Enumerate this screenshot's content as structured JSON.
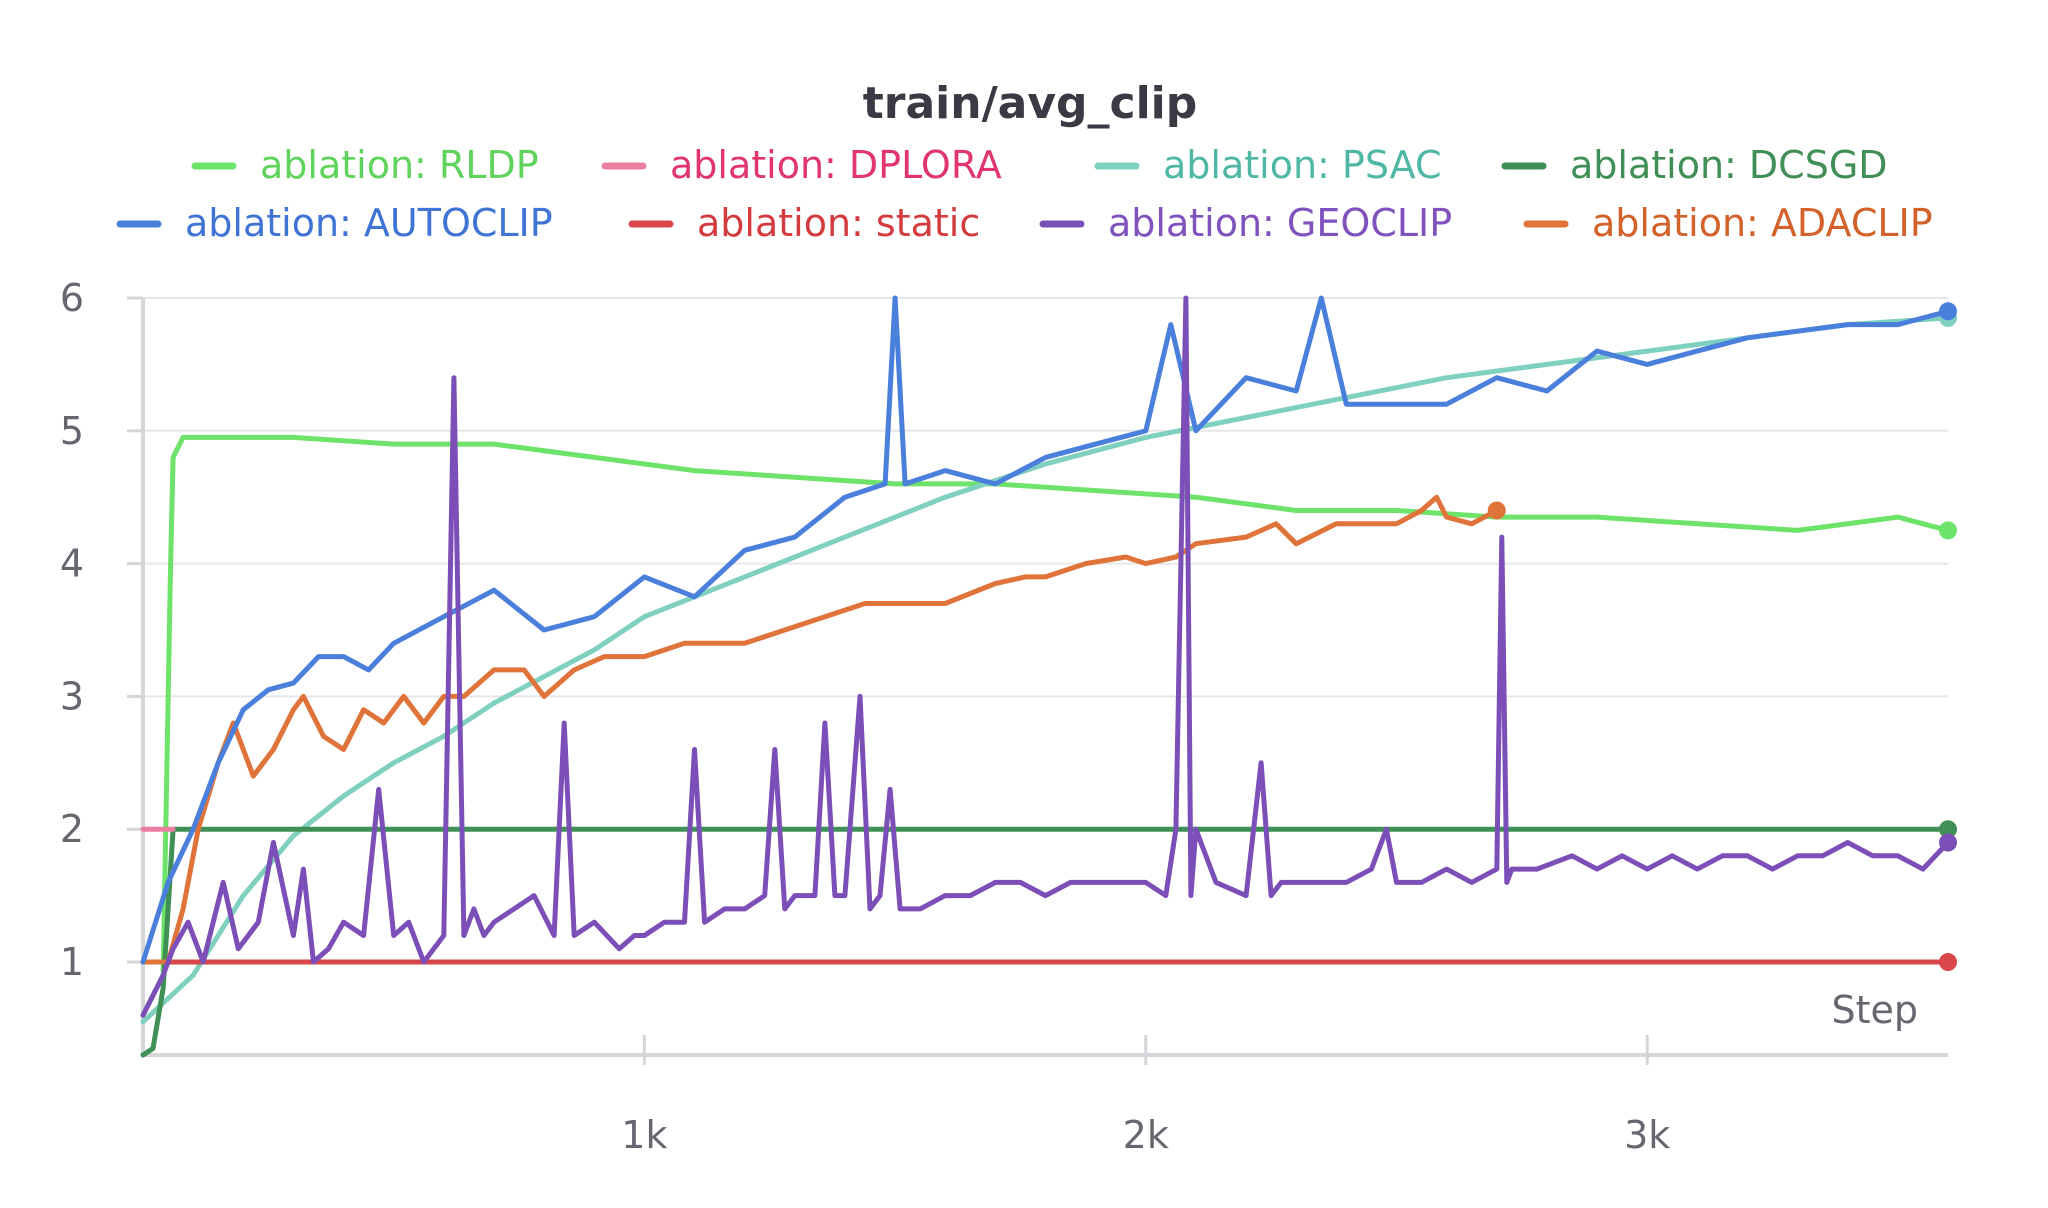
{
  "chart_data": {
    "type": "line",
    "title": "train/avg_clip",
    "xlabel": "Step",
    "ylabel": "",
    "xlim": [
      0,
      3600
    ],
    "ylim": [
      0.3,
      6
    ],
    "x_ticks": [
      {
        "value": 1000,
        "label": "1k"
      },
      {
        "value": 2000,
        "label": "2k"
      },
      {
        "value": 3000,
        "label": "3k"
      }
    ],
    "y_ticks": [
      {
        "value": 1,
        "label": "1"
      },
      {
        "value": 2,
        "label": "2"
      },
      {
        "value": 3,
        "label": "3"
      },
      {
        "value": 4,
        "label": "4"
      },
      {
        "value": 5,
        "label": "5"
      },
      {
        "value": 6,
        "label": "6"
      }
    ],
    "grid": true,
    "legend_position": "top",
    "series": [
      {
        "name": "ablation: RLDP",
        "color": "#6ee36a",
        "text_color": "#5fd35c",
        "x": [
          0,
          40,
          55,
          60,
          80,
          150,
          300,
          500,
          700,
          900,
          1100,
          1300,
          1500,
          1700,
          1900,
          2100,
          2300,
          2500,
          2700,
          2900,
          3100,
          3300,
          3500,
          3600
        ],
        "y": [
          0.6,
          0.9,
          4.0,
          4.8,
          4.95,
          4.95,
          4.95,
          4.9,
          4.9,
          4.8,
          4.7,
          4.65,
          4.6,
          4.6,
          4.55,
          4.5,
          4.4,
          4.4,
          4.35,
          4.35,
          4.3,
          4.25,
          4.35,
          4.25
        ]
      },
      {
        "name": "ablation: DPLORA",
        "color": "#ea7fa0",
        "text_color": "#e0366b",
        "x": [
          0,
          60
        ],
        "y": [
          2.0,
          2.0
        ]
      },
      {
        "name": "ablation: PSAC",
        "color": "#80d0c0",
        "text_color": "#4fb8a4",
        "x": [
          0,
          100,
          200,
          300,
          400,
          500,
          600,
          700,
          800,
          900,
          1000,
          1200,
          1400,
          1600,
          1800,
          2000,
          2200,
          2400,
          2600,
          2800,
          3000,
          3200,
          3400,
          3600
        ],
        "y": [
          0.55,
          0.9,
          1.5,
          1.95,
          2.25,
          2.5,
          2.7,
          2.95,
          3.15,
          3.35,
          3.6,
          3.9,
          4.2,
          4.5,
          4.75,
          4.95,
          5.1,
          5.25,
          5.4,
          5.5,
          5.6,
          5.7,
          5.8,
          5.85
        ]
      },
      {
        "name": "ablation: DCSGD",
        "color": "#3f8f56",
        "text_color": "#3f8f56",
        "x": [
          0,
          20,
          40,
          60,
          3600
        ],
        "y": [
          0.3,
          0.35,
          0.8,
          2.0,
          2.0
        ]
      },
      {
        "name": "ablation: AUTOCLIP",
        "color": "#4a7fdc",
        "text_color": "#3f74d4",
        "x": [
          0,
          50,
          100,
          150,
          200,
          250,
          300,
          350,
          400,
          450,
          500,
          600,
          700,
          800,
          900,
          1000,
          1100,
          1200,
          1300,
          1400,
          1480,
          1500,
          1520,
          1600,
          1700,
          1800,
          1900,
          2000,
          2050,
          2100,
          2200,
          2300,
          2350,
          2400,
          2500,
          2600,
          2700,
          2800,
          2900,
          3000,
          3100,
          3200,
          3300,
          3400,
          3500,
          3600
        ],
        "y": [
          1.0,
          1.6,
          2.0,
          2.5,
          2.9,
          3.05,
          3.1,
          3.3,
          3.3,
          3.2,
          3.4,
          3.6,
          3.8,
          3.5,
          3.6,
          3.9,
          3.75,
          4.1,
          4.2,
          4.5,
          4.6,
          6.0,
          4.6,
          4.7,
          4.6,
          4.8,
          4.9,
          5.0,
          5.8,
          5.0,
          5.4,
          5.3,
          6.0,
          5.2,
          5.2,
          5.2,
          5.4,
          5.3,
          5.6,
          5.5,
          5.6,
          5.7,
          5.75,
          5.8,
          5.8,
          5.9
        ]
      },
      {
        "name": "ablation: static",
        "color": "#d9474a",
        "text_color": "#d33b3e",
        "x": [
          0,
          3600
        ],
        "y": [
          1.0,
          1.0
        ]
      },
      {
        "name": "ablation: GEOCLIP",
        "color": "#7c4fb8",
        "text_color": "#7f52bd",
        "x": [
          0,
          40,
          60,
          90,
          120,
          160,
          190,
          230,
          260,
          300,
          320,
          340,
          370,
          400,
          440,
          470,
          500,
          530,
          560,
          600,
          620,
          640,
          660,
          680,
          700,
          740,
          780,
          820,
          840,
          860,
          900,
          950,
          980,
          1000,
          1040,
          1080,
          1100,
          1120,
          1160,
          1200,
          1240,
          1260,
          1280,
          1300,
          1340,
          1360,
          1380,
          1400,
          1430,
          1450,
          1470,
          1490,
          1510,
          1550,
          1600,
          1650,
          1700,
          1750,
          1800,
          1850,
          1900,
          1950,
          2000,
          2040,
          2060,
          2080,
          2090,
          2100,
          2140,
          2200,
          2230,
          2250,
          2270,
          2300,
          2350,
          2400,
          2450,
          2480,
          2500,
          2550,
          2600,
          2650,
          2700,
          2710,
          2720,
          2730,
          2780,
          2850,
          2900,
          2950,
          3000,
          3050,
          3100,
          3150,
          3200,
          3250,
          3300,
          3350,
          3400,
          3450,
          3500,
          3550,
          3600
        ],
        "y": [
          0.6,
          0.9,
          1.1,
          1.3,
          1.0,
          1.6,
          1.1,
          1.3,
          1.9,
          1.2,
          1.7,
          1.0,
          1.1,
          1.3,
          1.2,
          2.3,
          1.2,
          1.3,
          1.0,
          1.2,
          5.4,
          1.2,
          1.4,
          1.2,
          1.3,
          1.4,
          1.5,
          1.2,
          2.8,
          1.2,
          1.3,
          1.1,
          1.2,
          1.2,
          1.3,
          1.3,
          2.6,
          1.3,
          1.4,
          1.4,
          1.5,
          2.6,
          1.4,
          1.5,
          1.5,
          2.8,
          1.5,
          1.5,
          3.0,
          1.4,
          1.5,
          2.3,
          1.4,
          1.4,
          1.5,
          1.5,
          1.6,
          1.6,
          1.5,
          1.6,
          1.6,
          1.6,
          1.6,
          1.5,
          2.0,
          6.0,
          1.5,
          2.0,
          1.6,
          1.5,
          2.5,
          1.5,
          1.6,
          1.6,
          1.6,
          1.6,
          1.7,
          2.0,
          1.6,
          1.6,
          1.7,
          1.6,
          1.7,
          4.2,
          1.6,
          1.7,
          1.7,
          1.8,
          1.7,
          1.8,
          1.7,
          1.8,
          1.7,
          1.8,
          1.8,
          1.7,
          1.8,
          1.8,
          1.9,
          1.8,
          1.8,
          1.7,
          1.9
        ]
      },
      {
        "name": "ablation: ADACLIP",
        "color": "#e07339",
        "text_color": "#d2612a",
        "x": [
          0,
          50,
          80,
          110,
          150,
          180,
          220,
          260,
          300,
          320,
          360,
          400,
          440,
          480,
          520,
          560,
          600,
          640,
          700,
          760,
          800,
          860,
          920,
          980,
          1000,
          1080,
          1160,
          1200,
          1280,
          1360,
          1440,
          1520,
          1600,
          1700,
          1760,
          1800,
          1880,
          1960,
          2000,
          2060,
          2100,
          2200,
          2260,
          2300,
          2380,
          2440,
          2500,
          2550,
          2580,
          2600,
          2650,
          2700
        ],
        "y": [
          1.0,
          1.0,
          1.4,
          2.0,
          2.5,
          2.8,
          2.4,
          2.6,
          2.9,
          3.0,
          2.7,
          2.6,
          2.9,
          2.8,
          3.0,
          2.8,
          3.0,
          3.0,
          3.2,
          3.2,
          3.0,
          3.2,
          3.3,
          3.3,
          3.3,
          3.4,
          3.4,
          3.4,
          3.5,
          3.6,
          3.7,
          3.7,
          3.7,
          3.85,
          3.9,
          3.9,
          4.0,
          4.05,
          4.0,
          4.05,
          4.15,
          4.2,
          4.3,
          4.15,
          4.3,
          4.3,
          4.3,
          4.4,
          4.5,
          4.35,
          4.3,
          4.4
        ]
      }
    ]
  }
}
